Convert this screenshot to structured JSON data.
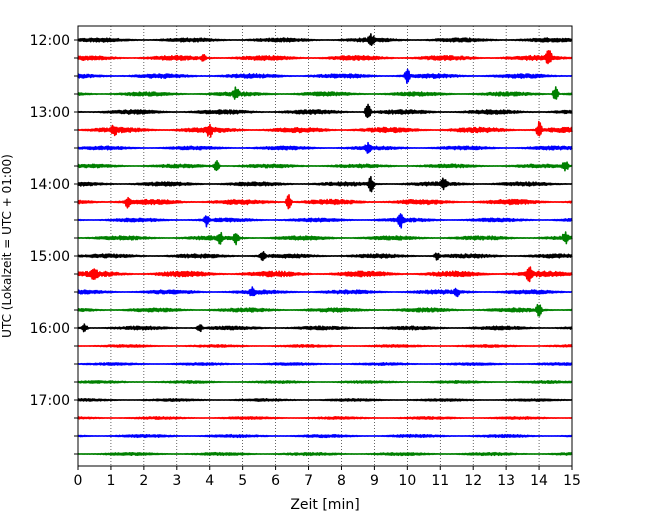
{
  "chart_data": {
    "type": "line",
    "title": "",
    "xlabel": "Zeit  [min]",
    "ylabel": "UTC (Lokalzeit = UTC + 01:00)",
    "xlim": [
      0,
      15
    ],
    "x_ticks": [
      "0",
      "1",
      "2",
      "3",
      "4",
      "5",
      "6",
      "7",
      "8",
      "9",
      "10",
      "11",
      "12",
      "13",
      "14",
      "15"
    ],
    "y_tick_labels": [
      "12:00",
      "13:00",
      "14:00",
      "15:00",
      "16:00",
      "17:00"
    ],
    "grid": "vertical dotted at each minute",
    "trace_interval_min": 15,
    "trace_count": 24,
    "color_cycle": [
      "#000000",
      "#ff0000",
      "#0000ff",
      "#008000"
    ],
    "traces": [
      {
        "start": "12:00",
        "color": "#000000",
        "amplitude": 2.0,
        "spikes": [
          [
            8.9,
            6
          ]
        ]
      },
      {
        "start": "12:15",
        "color": "#ff0000",
        "amplitude": 2.4,
        "spikes": [
          [
            3.8,
            4
          ],
          [
            14.3,
            9
          ]
        ]
      },
      {
        "start": "12:30",
        "color": "#0000ff",
        "amplitude": 2.2,
        "spikes": [
          [
            10.0,
            7
          ]
        ]
      },
      {
        "start": "12:45",
        "color": "#008000",
        "amplitude": 2.0,
        "spikes": [
          [
            4.8,
            6
          ],
          [
            14.5,
            8
          ]
        ]
      },
      {
        "start": "13:00",
        "color": "#000000",
        "amplitude": 2.2,
        "spikes": [
          [
            8.8,
            9
          ]
        ]
      },
      {
        "start": "13:15",
        "color": "#ff0000",
        "amplitude": 2.6,
        "spikes": [
          [
            1.1,
            4
          ],
          [
            4.0,
            7
          ],
          [
            14.0,
            9
          ]
        ]
      },
      {
        "start": "13:30",
        "color": "#0000ff",
        "amplitude": 1.8,
        "spikes": [
          [
            8.8,
            5
          ]
        ]
      },
      {
        "start": "13:45",
        "color": "#008000",
        "amplitude": 1.8,
        "spikes": [
          [
            4.2,
            7
          ],
          [
            14.8,
            6
          ]
        ]
      },
      {
        "start": "14:00",
        "color": "#000000",
        "amplitude": 2.0,
        "spikes": [
          [
            8.9,
            8
          ],
          [
            11.1,
            5
          ]
        ]
      },
      {
        "start": "14:15",
        "color": "#ff0000",
        "amplitude": 2.6,
        "spikes": [
          [
            1.5,
            5
          ],
          [
            6.4,
            8
          ]
        ]
      },
      {
        "start": "14:30",
        "color": "#0000ff",
        "amplitude": 1.8,
        "spikes": [
          [
            3.9,
            6
          ],
          [
            9.8,
            7
          ]
        ]
      },
      {
        "start": "14:45",
        "color": "#008000",
        "amplitude": 2.0,
        "spikes": [
          [
            4.3,
            6
          ],
          [
            4.8,
            6
          ],
          [
            14.8,
            5
          ]
        ]
      },
      {
        "start": "15:00",
        "color": "#000000",
        "amplitude": 2.0,
        "spikes": [
          [
            5.6,
            5
          ],
          [
            10.9,
            4
          ]
        ]
      },
      {
        "start": "15:15",
        "color": "#ff0000",
        "amplitude": 2.8,
        "spikes": [
          [
            0.5,
            6
          ],
          [
            13.7,
            7
          ]
        ]
      },
      {
        "start": "15:30",
        "color": "#0000ff",
        "amplitude": 2.0,
        "spikes": [
          [
            5.3,
            4
          ],
          [
            11.5,
            4
          ]
        ]
      },
      {
        "start": "15:45",
        "color": "#008000",
        "amplitude": 2.0,
        "spikes": [
          [
            14.0,
            8
          ]
        ]
      },
      {
        "start": "16:00",
        "color": "#000000",
        "amplitude": 1.8,
        "spikes": [
          [
            0.2,
            5
          ],
          [
            3.7,
            4
          ]
        ]
      },
      {
        "start": "16:15",
        "color": "#ff0000",
        "amplitude": 1.2,
        "spikes": []
      },
      {
        "start": "16:30",
        "color": "#0000ff",
        "amplitude": 1.2,
        "spikes": []
      },
      {
        "start": "16:45",
        "color": "#008000",
        "amplitude": 1.2,
        "spikes": []
      },
      {
        "start": "17:00",
        "color": "#000000",
        "amplitude": 1.2,
        "spikes": []
      },
      {
        "start": "17:15",
        "color": "#ff0000",
        "amplitude": 1.2,
        "spikes": []
      },
      {
        "start": "17:30",
        "color": "#0000ff",
        "amplitude": 1.4,
        "spikes": []
      },
      {
        "start": "17:45",
        "color": "#008000",
        "amplitude": 1.4,
        "spikes": []
      }
    ]
  }
}
